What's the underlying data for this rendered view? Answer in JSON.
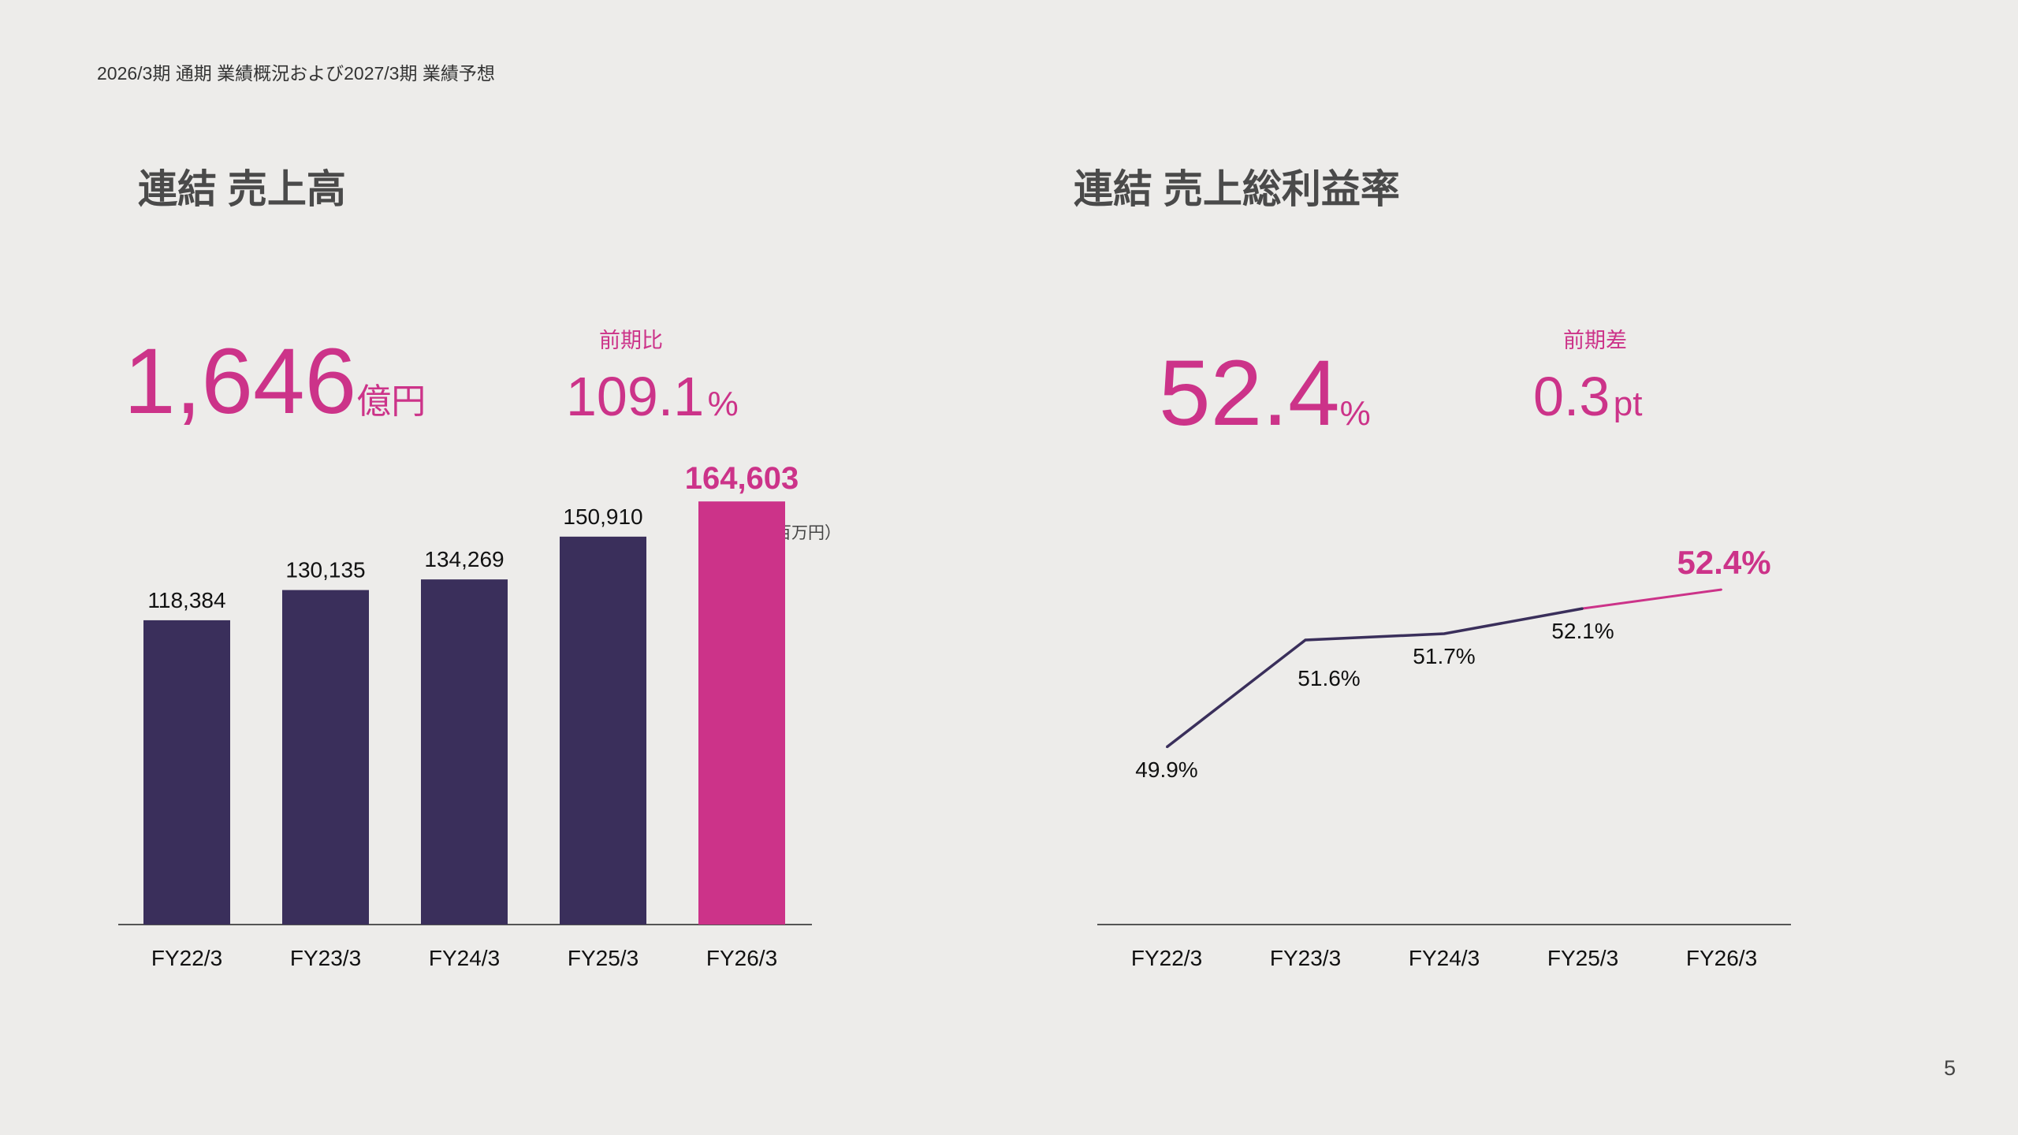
{
  "header": {
    "title": "2026/3期 通期 業績概況および2027/3期 業績予想"
  },
  "page_number": "5",
  "colors": {
    "accent": "#cc3389",
    "bar": "#3a2f5b",
    "background": "#edecea"
  },
  "left_panel": {
    "title": "連結 売上高",
    "kpi_value": "1,646",
    "kpi_unit": "億円",
    "compare_label": "前期比",
    "compare_value": "109.1",
    "compare_unit": "%",
    "unit_note": "（百万円）"
  },
  "right_panel": {
    "title": "連結 売上総利益率",
    "kpi_value": "52.4",
    "kpi_unit": "%",
    "compare_label": "前期差",
    "compare_value": "0.3",
    "compare_unit": "pt"
  },
  "chart_data": [
    {
      "type": "bar",
      "title": "連結 売上高",
      "unit": "百万円",
      "categories": [
        "FY22/3",
        "FY23/3",
        "FY24/3",
        "FY25/3",
        "FY26/3"
      ],
      "values": [
        118384,
        130135,
        134269,
        150910,
        164603
      ],
      "value_labels": [
        "118,384",
        "130,135",
        "134,269",
        "150,910",
        "164,603"
      ],
      "highlight_index": 4,
      "ylim": [
        0,
        190000
      ]
    },
    {
      "type": "line",
      "title": "連結 売上総利益率",
      "categories": [
        "FY22/3",
        "FY23/3",
        "FY24/3",
        "FY25/3",
        "FY26/3"
      ],
      "values": [
        49.9,
        51.6,
        51.7,
        52.1,
        52.4
      ],
      "value_labels": [
        "49.9%",
        "51.6%",
        "51.7%",
        "52.1%",
        "52.4%"
      ],
      "highlight_index": 4,
      "ylim": [
        48.0,
        53.0
      ]
    }
  ]
}
